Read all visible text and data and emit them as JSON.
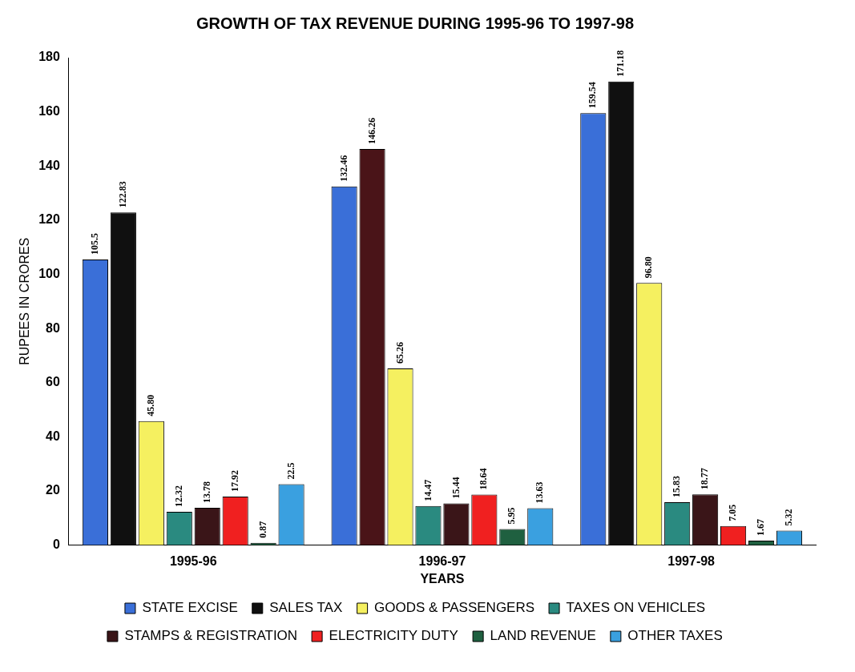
{
  "chart_data": {
    "type": "bar",
    "title": "GROWTH OF TAX REVENUE DURING 1995-96 TO 1997-98",
    "xlabel": "YEARS",
    "ylabel": "RUPEES IN CRORES",
    "categories": [
      "1995-96",
      "1996-97",
      "1997-98"
    ],
    "ylim": [
      0,
      180
    ],
    "yticks": [
      0,
      20,
      40,
      60,
      80,
      100,
      120,
      140,
      160,
      180
    ],
    "grid": false,
    "legend": "bottom",
    "series": [
      {
        "name": "STATE EXCISE",
        "color": "#3a6fd8",
        "values": [
          105.5,
          132.46,
          159.54
        ],
        "value_labels": [
          "105.5",
          "132.46",
          "159.54"
        ]
      },
      {
        "name": "SALES TAX",
        "color": "#101010",
        "colors": [
          "#101010",
          "#4a1418",
          "#101010"
        ],
        "values": [
          122.83,
          146.26,
          171.18
        ],
        "value_labels": [
          "122.83",
          "146.26",
          "171.18"
        ]
      },
      {
        "name": "GOODS & PASSENGERS",
        "color": "#f5f060",
        "values": [
          45.8,
          65.26,
          96.8
        ],
        "value_labels": [
          "45.80",
          "65.26",
          "96.80"
        ]
      },
      {
        "name": "TAXES ON VEHICLES",
        "color": "#2a8a80",
        "values": [
          12.32,
          14.47,
          15.83
        ],
        "value_labels": [
          "12.32",
          "14.47",
          "15.83"
        ]
      },
      {
        "name": "STAMPS & REGISTRATION",
        "color": "#3a1518",
        "values": [
          13.78,
          15.44,
          18.77
        ],
        "value_labels": [
          "13.78",
          "15.44",
          "18.77"
        ]
      },
      {
        "name": "ELECTRICITY DUTY",
        "color": "#f02020",
        "values": [
          17.92,
          18.64,
          7.05
        ],
        "value_labels": [
          "17.92",
          "18.64",
          "7.05"
        ]
      },
      {
        "name": "LAND REVENUE",
        "color": "#1f6040",
        "values": [
          0.87,
          5.95,
          1.67
        ],
        "value_labels": [
          "0.87",
          "5.95",
          "1.67"
        ]
      },
      {
        "name": "OTHER TAXES",
        "color": "#3aa0e0",
        "values": [
          22.5,
          13.63,
          5.32
        ],
        "value_labels": [
          "22.5",
          "13.63",
          "5.32"
        ]
      }
    ]
  }
}
